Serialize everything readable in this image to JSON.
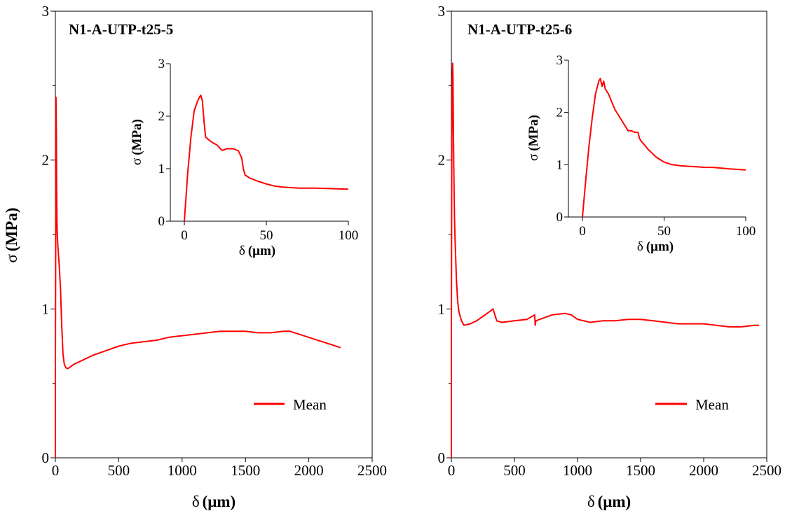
{
  "series_color": "#ff0000",
  "chart_data": [
    {
      "type": "line",
      "title": "N1-A-UTP-t25-5",
      "xlabel_sym": "δ",
      "xlabel_unit": "(μm)",
      "ylabel_sym": "σ",
      "ylabel_unit": "(MPa)",
      "xlim": [
        0,
        2500
      ],
      "ylim": [
        0,
        3
      ],
      "x_ticks": [
        "0",
        "500",
        "1000",
        "1500",
        "2000",
        "2500"
      ],
      "y_ticks": [
        "0",
        "1",
        "2",
        "3"
      ],
      "y_minor_ticks": [
        0.5,
        1.5,
        2.5
      ],
      "legend": "Mean",
      "legend_position": "bottom-right",
      "series": [
        {
          "x": [
            0,
            0,
            3,
            5,
            8,
            10,
            12,
            15,
            20,
            25,
            30,
            40,
            50,
            60,
            70,
            80,
            90,
            100,
            150,
            200,
            250,
            300,
            400,
            500,
            600,
            700,
            800,
            900,
            1000,
            1100,
            1200,
            1300,
            1400,
            1500,
            1600,
            1700,
            1800,
            1850,
            2250
          ],
          "y": [
            0,
            0.6,
            1.5,
            2.42,
            2.2,
            1.8,
            1.6,
            1.5,
            1.42,
            1.36,
            1.3,
            1.15,
            0.9,
            0.7,
            0.63,
            0.61,
            0.6,
            0.6,
            0.63,
            0.65,
            0.67,
            0.69,
            0.72,
            0.75,
            0.77,
            0.78,
            0.79,
            0.81,
            0.82,
            0.83,
            0.84,
            0.85,
            0.85,
            0.85,
            0.84,
            0.84,
            0.85,
            0.85,
            0.74
          ]
        }
      ],
      "inset": {
        "xlabel_sym": "δ",
        "xlabel_unit": "(μm)",
        "ylabel_sym": "σ",
        "ylabel_unit": "(MPa)",
        "xlim": [
          0,
          100
        ],
        "ylim": [
          0,
          3
        ],
        "x_ticks": [
          "0",
          "50",
          "100"
        ],
        "y_ticks": [
          "0",
          "1",
          "2",
          "3"
        ],
        "series": [
          {
            "x": [
              0,
              2,
              4,
              6,
              8,
              9,
              10,
              11,
              12,
              13,
              15,
              17,
              20,
              23,
              26,
              30,
              33,
              35,
              36,
              37,
              40,
              45,
              50,
              55,
              60,
              65,
              70,
              75,
              80,
              90,
              100
            ],
            "y": [
              0,
              0.9,
              1.6,
              2.1,
              2.28,
              2.35,
              2.4,
              2.3,
              1.9,
              1.6,
              1.55,
              1.5,
              1.45,
              1.35,
              1.38,
              1.38,
              1.34,
              1.2,
              1.0,
              0.88,
              0.82,
              0.76,
              0.71,
              0.67,
              0.65,
              0.64,
              0.63,
              0.63,
              0.63,
              0.62,
              0.61
            ]
          }
        ]
      }
    },
    {
      "type": "line",
      "title": "N1-A-UTP-t25-6",
      "xlabel_sym": "δ",
      "xlabel_unit": "(μm)",
      "ylabel_sym": "",
      "ylabel_unit": "",
      "xlim": [
        0,
        2500
      ],
      "ylim": [
        0,
        3
      ],
      "x_ticks": [
        "0",
        "500",
        "1000",
        "1500",
        "2000",
        "2500"
      ],
      "y_ticks": [
        "0",
        "1",
        "2",
        "3"
      ],
      "y_minor_ticks": [
        0.5,
        1.5,
        2.5
      ],
      "legend": "Mean",
      "legend_position": "bottom-right",
      "series": [
        {
          "x": [
            0,
            0,
            3,
            6,
            10,
            13,
            16,
            20,
            25,
            30,
            40,
            50,
            60,
            70,
            80,
            100,
            150,
            200,
            250,
            300,
            330,
            345,
            360,
            400,
            500,
            600,
            660,
            665,
            670,
            700,
            800,
            900,
            950,
            1000,
            1100,
            1200,
            1300,
            1400,
            1500,
            1600,
            1700,
            1800,
            1900,
            2000,
            2100,
            2200,
            2300,
            2400,
            2440
          ],
          "y": [
            0,
            0.8,
            1.9,
            2.5,
            2.65,
            2.55,
            2.2,
            1.9,
            1.6,
            1.45,
            1.2,
            1.05,
            0.98,
            0.95,
            0.92,
            0.89,
            0.9,
            0.92,
            0.95,
            0.98,
            1.0,
            0.96,
            0.92,
            0.91,
            0.92,
            0.93,
            0.96,
            0.89,
            0.92,
            0.93,
            0.96,
            0.97,
            0.96,
            0.93,
            0.91,
            0.92,
            0.92,
            0.93,
            0.93,
            0.92,
            0.91,
            0.9,
            0.9,
            0.9,
            0.89,
            0.88,
            0.88,
            0.89,
            0.89
          ]
        }
      ],
      "inset": {
        "xlabel_sym": "δ",
        "xlabel_unit": "(μm)",
        "ylabel_sym": "σ",
        "ylabel_unit": "(MPa)",
        "xlim": [
          0,
          100
        ],
        "ylim": [
          0,
          3
        ],
        "x_ticks": [
          "0",
          "50",
          "100"
        ],
        "y_ticks": [
          "0",
          "1",
          "2",
          "3"
        ],
        "series": [
          {
            "x": [
              0,
              2,
              4,
              6,
              8,
              10,
              11,
              12,
              13,
              14,
              16,
              18,
              20,
              22,
              24,
              26,
              28,
              30,
              32,
              34,
              35,
              36,
              38,
              40,
              45,
              50,
              55,
              60,
              65,
              70,
              75,
              80,
              90,
              100
            ],
            "y": [
              0,
              0.7,
              1.35,
              1.9,
              2.35,
              2.6,
              2.65,
              2.5,
              2.6,
              2.45,
              2.35,
              2.2,
              2.05,
              1.95,
              1.85,
              1.75,
              1.65,
              1.65,
              1.62,
              1.62,
              1.5,
              1.45,
              1.38,
              1.3,
              1.15,
              1.05,
              1.0,
              0.98,
              0.97,
              0.96,
              0.95,
              0.95,
              0.92,
              0.9
            ]
          }
        ]
      }
    }
  ]
}
